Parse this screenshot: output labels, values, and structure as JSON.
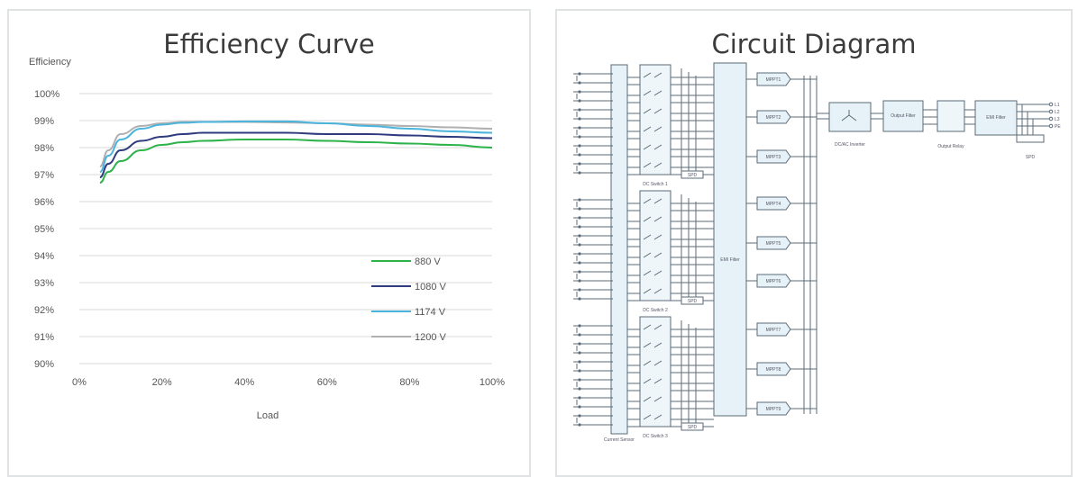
{
  "chart_data": {
    "type": "line",
    "title": "Efficiency Curve",
    "ylabel": "Efficiency",
    "xlabel": "Load",
    "x_ticks": [
      "0%",
      "20%",
      "40%",
      "60%",
      "80%",
      "100%"
    ],
    "y_ticks": [
      "100%",
      "99%",
      "98%",
      "97%",
      "96%",
      "95%",
      "94%",
      "93%",
      "92%",
      "91%",
      "90%"
    ],
    "xlim": [
      0,
      100
    ],
    "ylim": [
      90,
      100
    ],
    "grid": "horizontal",
    "legend_position": "bottom-right",
    "series": [
      {
        "name": "880 V",
        "color": "#2db34a",
        "x": [
          5,
          7,
          10,
          15,
          20,
          25,
          30,
          40,
          50,
          60,
          70,
          80,
          90,
          100
        ],
        "y": [
          96.7,
          97.1,
          97.5,
          97.9,
          98.1,
          98.2,
          98.25,
          98.3,
          98.3,
          98.25,
          98.2,
          98.15,
          98.1,
          98.0
        ]
      },
      {
        "name": "1080 V",
        "color": "#2e3b7e",
        "x": [
          5,
          7,
          10,
          15,
          20,
          25,
          30,
          40,
          50,
          60,
          70,
          80,
          90,
          100
        ],
        "y": [
          96.9,
          97.4,
          97.9,
          98.25,
          98.4,
          98.5,
          98.55,
          98.55,
          98.55,
          98.5,
          98.5,
          98.45,
          98.4,
          98.35
        ]
      },
      {
        "name": "1174 V",
        "color": "#4ab4dc",
        "x": [
          5,
          7,
          10,
          15,
          20,
          25,
          30,
          40,
          50,
          60,
          70,
          80,
          90,
          100
        ],
        "y": [
          97.1,
          97.7,
          98.3,
          98.7,
          98.85,
          98.92,
          98.95,
          98.97,
          98.97,
          98.9,
          98.8,
          98.7,
          98.6,
          98.55
        ]
      },
      {
        "name": "1200 V",
        "color": "#b0b0b0",
        "x": [
          5,
          7,
          10,
          15,
          20,
          25,
          30,
          40,
          50,
          60,
          70,
          80,
          90,
          100
        ],
        "y": [
          97.3,
          97.9,
          98.5,
          98.8,
          98.9,
          98.95,
          98.95,
          98.95,
          98.93,
          98.9,
          98.85,
          98.8,
          98.75,
          98.7
        ]
      }
    ]
  },
  "diagram": {
    "title": "Circuit Diagram",
    "current_sensor": "Current Sensor",
    "dc_switches": [
      "DC Switch 1",
      "DC Switch 2",
      "DC Switch 3"
    ],
    "spd": "SPD",
    "emi_filter": "EMI Filter",
    "mppt_labels": [
      "MPPT1",
      "MPPT2",
      "MPPT3",
      "MPPT4",
      "MPPT5",
      "MPPT6",
      "MPPT7",
      "MPPT8",
      "MPPT9"
    ],
    "inverter": "DC/AC Inverter",
    "output_filter": "Output Filter",
    "output_relay": "Output Relay",
    "emi_filter_2": "EMI Filter",
    "spd_out": "SPD",
    "outputs": [
      "L1",
      "L2",
      "L3",
      "PE"
    ]
  }
}
